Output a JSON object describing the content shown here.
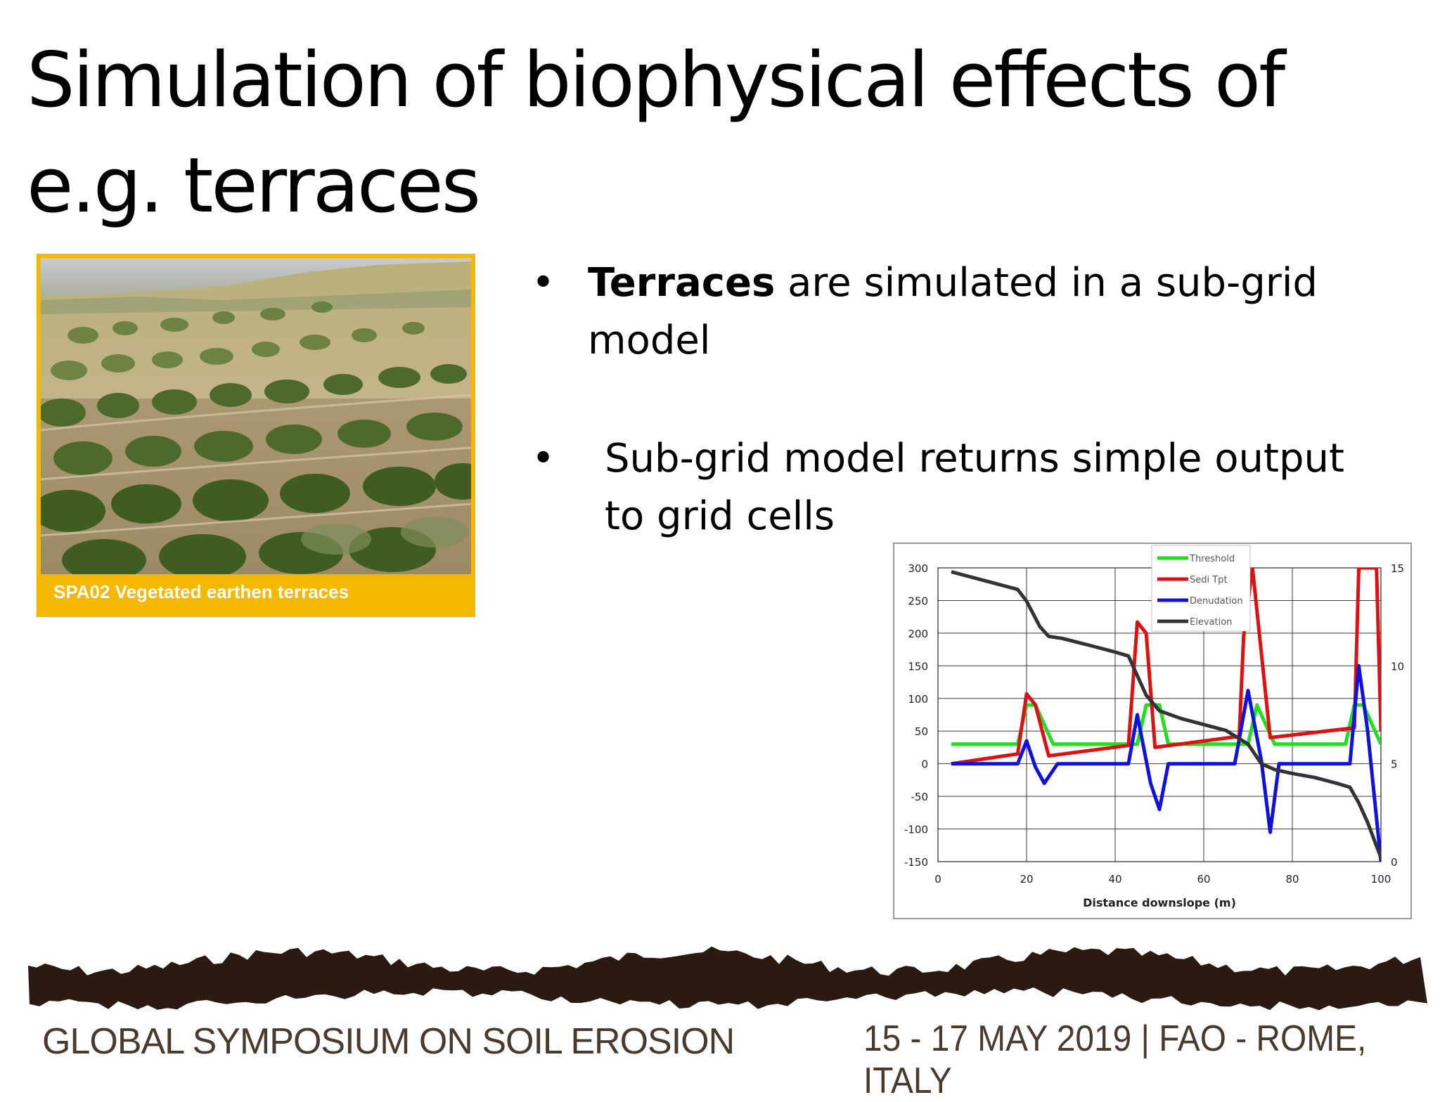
{
  "slide": {
    "title": "Simulation of biophysical effects of e.g. terraces"
  },
  "photo": {
    "caption": "SPA02 Vegetated earthen terraces",
    "frame_color": "#f5b800"
  },
  "bullets": [
    {
      "marker": "•",
      "bold": "Terraces",
      "text": " are simulated in a sub-grid model"
    },
    {
      "marker": "•",
      "bold": "",
      "text": "Sub-grid model returns simple output to grid cells"
    }
  ],
  "chart_data": {
    "type": "line",
    "title": "",
    "xlabel": "Distance downslope (m)",
    "ylabel": "",
    "xlim": [
      0,
      100
    ],
    "ylim": [
      -150,
      300
    ],
    "y2lim": [
      0,
      15
    ],
    "x_ticks": [
      "0",
      "20",
      "40",
      "60",
      "80",
      "100"
    ],
    "y_ticks": [
      "300",
      "250",
      "200",
      "150",
      "100",
      "50",
      "0",
      "-50",
      "-100",
      "-150"
    ],
    "y2_ticks": [
      "15",
      "10",
      "5",
      "0"
    ],
    "legend_position": "top-center",
    "series": [
      {
        "name": "Threshold",
        "color": "#22dd22",
        "axis": "left",
        "x": [
          3,
          18,
          20,
          22,
          26,
          45,
          47,
          50,
          52,
          70,
          72,
          76,
          92,
          94,
          96,
          100
        ],
        "y": [
          30,
          30,
          90,
          90,
          30,
          30,
          90,
          90,
          30,
          30,
          90,
          30,
          30,
          90,
          90,
          30
        ]
      },
      {
        "name": "Sedi Tpt",
        "color": "#dd1111",
        "axis": "left",
        "x": [
          3,
          18,
          20,
          22,
          25,
          43,
          45,
          47,
          49,
          68,
          69,
          71,
          75,
          94,
          95,
          98,
          99,
          100
        ],
        "y": [
          0,
          15,
          107,
          90,
          12,
          28,
          217,
          200,
          25,
          42,
          195,
          300,
          40,
          55,
          300,
          300,
          300,
          50
        ]
      },
      {
        "name": "Denudation",
        "color": "#1111dd",
        "axis": "left",
        "x": [
          3,
          18,
          20,
          22,
          24,
          27,
          43,
          45,
          48,
          50,
          52,
          67,
          70,
          73,
          75,
          77,
          93,
          95,
          97,
          100
        ],
        "y": [
          0,
          0,
          35,
          -5,
          -30,
          0,
          0,
          75,
          -30,
          -70,
          0,
          0,
          112,
          5,
          -105,
          0,
          0,
          150,
          50,
          -150
        ]
      },
      {
        "name": "Elevation",
        "color": "#333333",
        "axis": "right",
        "x": [
          3,
          8,
          13,
          18,
          20,
          23,
          25,
          28,
          35,
          40,
          43,
          45,
          47,
          50,
          55,
          60,
          65,
          70,
          73,
          76,
          80,
          85,
          90,
          93,
          95,
          97,
          99,
          100
        ],
        "y": [
          14.8,
          14.5,
          14.2,
          13.9,
          13.3,
          12.0,
          11.5,
          11.4,
          11.0,
          10.7,
          10.5,
          9.5,
          8.5,
          7.7,
          7.3,
          7.0,
          6.7,
          6.0,
          5.0,
          4.7,
          4.5,
          4.3,
          4.0,
          3.8,
          3.0,
          2.0,
          0.8,
          0.2
        ]
      }
    ]
  },
  "footer": {
    "left": "GLOBAL SYMPOSIUM ON SOIL EROSION",
    "right": "15 - 17 MAY 2019 | FAO - ROME, ITALY",
    "text_color": "#4a3a2e",
    "band_color": "#2a1a12"
  }
}
